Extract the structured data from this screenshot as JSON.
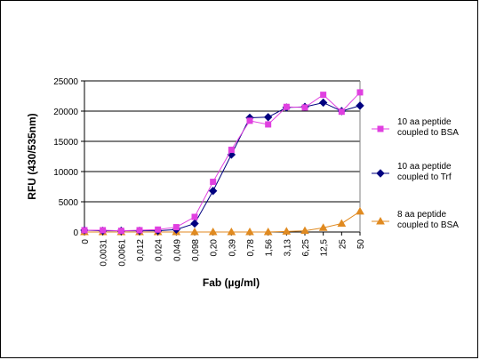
{
  "chart_data": {
    "type": "line",
    "categories": [
      "0",
      "0,0031",
      "0,0061",
      "0,012",
      "0,024",
      "0,049",
      "0,098",
      "0,20",
      "0,39",
      "0,78",
      "1,56",
      "3,13",
      "6,25",
      "12,5",
      "25",
      "50"
    ],
    "series": [
      {
        "name_lines": [
          "10 aa peptide",
          "coupled to BSA"
        ],
        "color": "#e040e0",
        "marker": "square",
        "values": [
          300,
          300,
          200,
          300,
          400,
          800,
          2500,
          8300,
          13600,
          18400,
          17800,
          20700,
          20600,
          22700,
          19900,
          23100
        ]
      },
      {
        "name_lines": [
          "10 aa peptide",
          "coupled to Trf"
        ],
        "color": "#000080",
        "marker": "diamond",
        "values": [
          300,
          200,
          200,
          200,
          200,
          400,
          1400,
          6800,
          12800,
          18900,
          19000,
          20600,
          20700,
          21400,
          20000,
          20900
        ]
      },
      {
        "name_lines": [
          "8 aa peptide",
          "coupled to BSA"
        ],
        "color": "#e08a20",
        "marker": "triangle",
        "values": [
          0,
          0,
          0,
          0,
          0,
          0,
          0,
          0,
          0,
          0,
          0,
          100,
          200,
          700,
          1400,
          3400
        ]
      }
    ],
    "xlabel": "Fab (µg/ml)",
    "ylabel": "RFU (430/535nm)",
    "ylim": [
      0,
      25000
    ],
    "yticks": [
      0,
      5000,
      10000,
      15000,
      20000,
      25000
    ],
    "grid": {
      "horizontal": true,
      "vertical": false
    },
    "legend_position": "right"
  }
}
